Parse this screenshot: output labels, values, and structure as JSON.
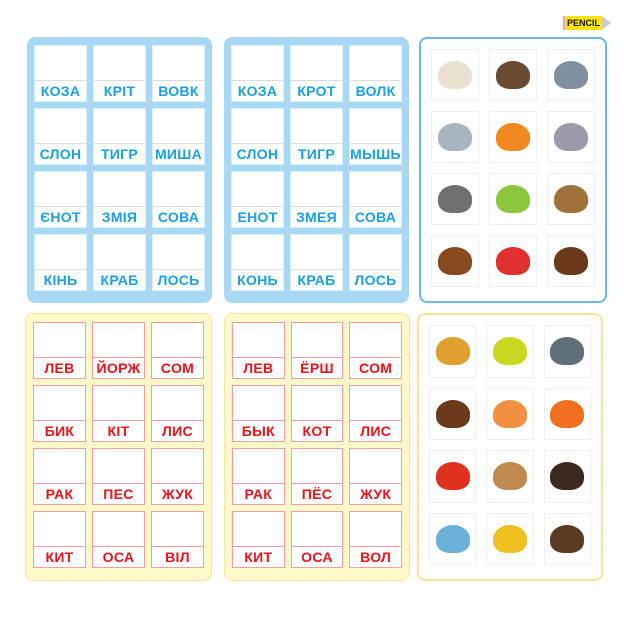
{
  "brand": {
    "logo_text": "PENCIL"
  },
  "panels": [
    {
      "style": "blue",
      "words": [
        "КОЗА",
        "КРІТ",
        "ВОВК",
        "СЛОН",
        "ТИГР",
        "МИША",
        "ЄНОТ",
        "ЗМІЯ",
        "СОВА",
        "КІНЬ",
        "КРАБ",
        "ЛОСЬ"
      ]
    },
    {
      "style": "blue",
      "words": [
        "КОЗА",
        "КРОТ",
        "ВОЛК",
        "СЛОН",
        "ТИГР",
        "МЫШЬ",
        "ЕНОТ",
        "ЗМЕЯ",
        "СОВА",
        "КОНЬ",
        "КРАБ",
        "ЛОСЬ"
      ]
    },
    {
      "style": "pic-blue",
      "pictures": [
        {
          "icon": "goat-icon",
          "color": "#e8e0d0"
        },
        {
          "icon": "mole-icon",
          "color": "#6b4a32"
        },
        {
          "icon": "wolf-icon",
          "color": "#8090a0"
        },
        {
          "icon": "elephant-icon",
          "color": "#a8b4c0"
        },
        {
          "icon": "tiger-icon",
          "color": "#f08a20"
        },
        {
          "icon": "mouse-icon",
          "color": "#9a9aa8"
        },
        {
          "icon": "raccoon-icon",
          "color": "#707070"
        },
        {
          "icon": "snake-icon",
          "color": "#8cc63e"
        },
        {
          "icon": "owl-icon",
          "color": "#a0703a"
        },
        {
          "icon": "horse-icon",
          "color": "#8a4a20"
        },
        {
          "icon": "crab-icon",
          "color": "#e03030"
        },
        {
          "icon": "moose-icon",
          "color": "#6a3a1a"
        }
      ]
    },
    {
      "style": "yellow",
      "words": [
        "ЛЕВ",
        "ЙОРЖ",
        "СОМ",
        "БИК",
        "КІТ",
        "ЛИС",
        "РАК",
        "ПЕС",
        "ЖУК",
        "КИТ",
        "ОСА",
        "ВІЛ"
      ]
    },
    {
      "style": "yellow",
      "words": [
        "ЛЕВ",
        "ЁРШ",
        "СОМ",
        "БЫК",
        "КОТ",
        "ЛИС",
        "РАК",
        "ПЁС",
        "ЖУК",
        "КИТ",
        "ОСА",
        "ВОЛ"
      ]
    },
    {
      "style": "pic-yellow",
      "pictures": [
        {
          "icon": "lion-icon",
          "color": "#e0a030"
        },
        {
          "icon": "ruffe-fish-icon",
          "color": "#c8d820"
        },
        {
          "icon": "catfish-icon",
          "color": "#60707a"
        },
        {
          "icon": "bull-icon",
          "color": "#6a3a1a"
        },
        {
          "icon": "cat-icon",
          "color": "#f09040"
        },
        {
          "icon": "fox-icon",
          "color": "#f07020"
        },
        {
          "icon": "crayfish-icon",
          "color": "#e03020"
        },
        {
          "icon": "dog-icon",
          "color": "#c08a50"
        },
        {
          "icon": "beetle-icon",
          "color": "#3a2a20"
        },
        {
          "icon": "whale-icon",
          "color": "#6ab0d8"
        },
        {
          "icon": "wasp-icon",
          "color": "#f0c020"
        },
        {
          "icon": "ox-icon",
          "color": "#5a3a20"
        }
      ]
    }
  ]
}
